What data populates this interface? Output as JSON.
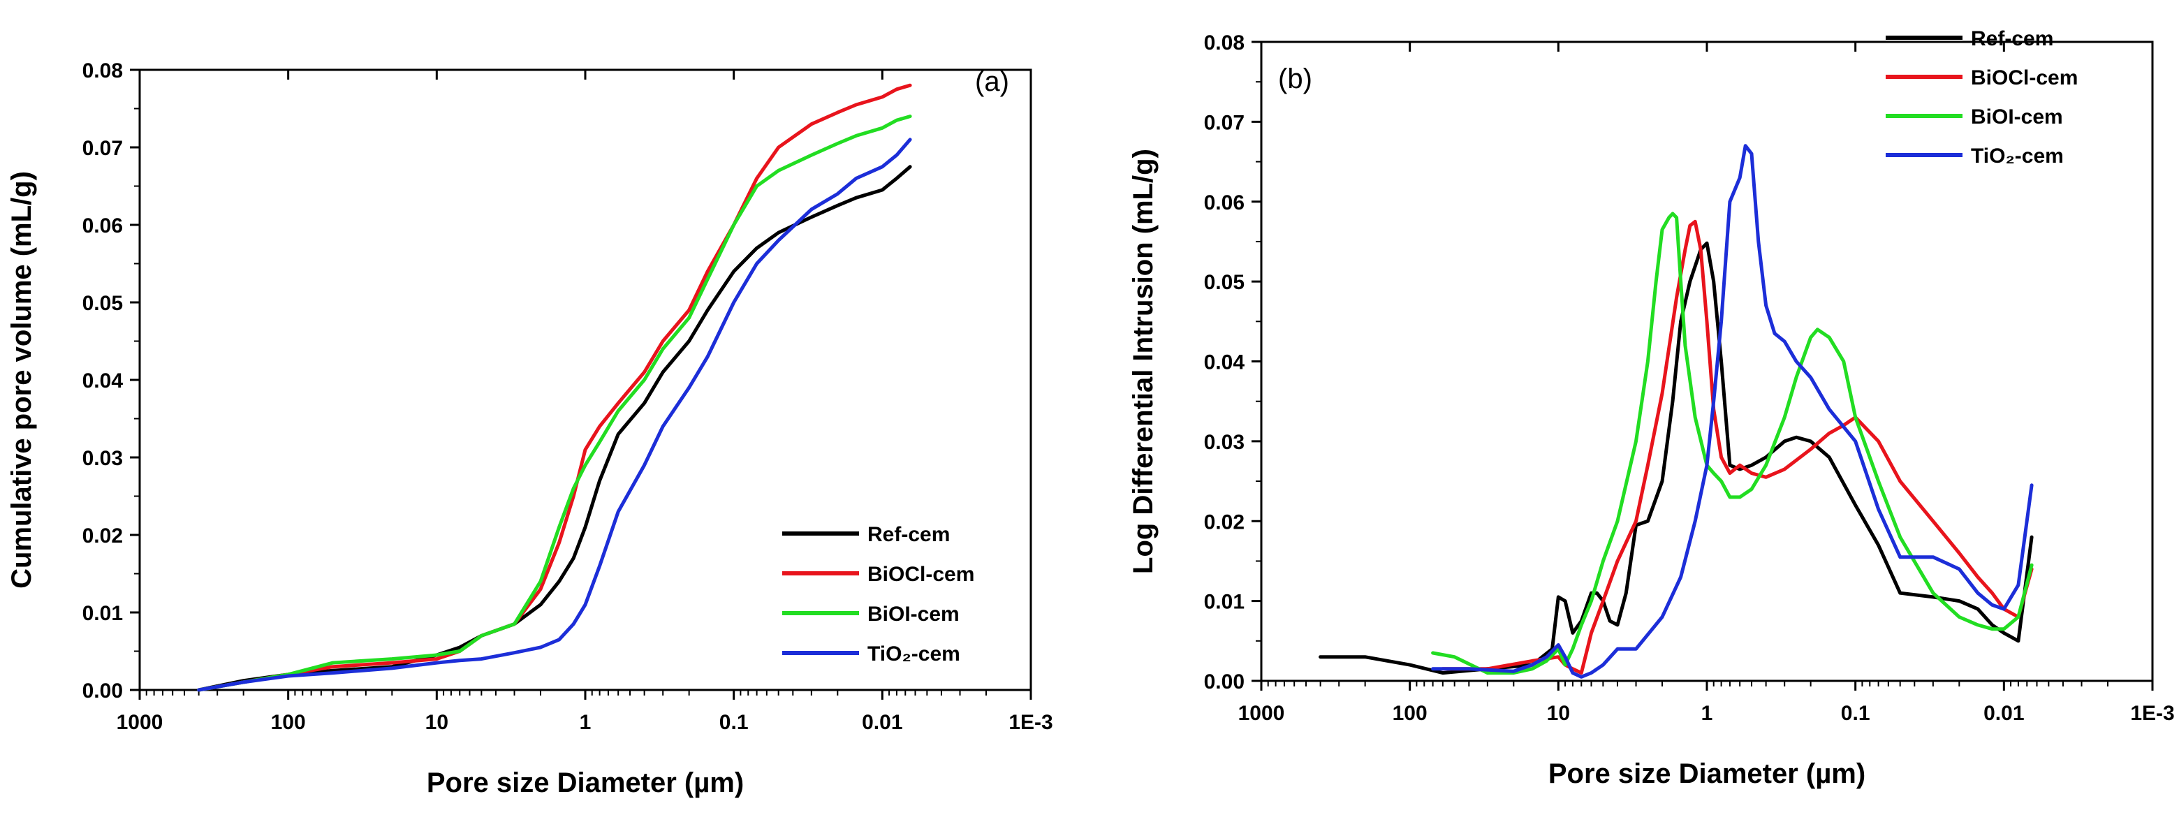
{
  "chart_data": [
    {
      "type": "line",
      "panel_label": "(a)",
      "xlabel": "Pore size Diameter (µm)",
      "ylabel": "Cumulative pore volume (mL/g)",
      "xscale": "log-reversed",
      "xlim": [
        1000,
        0.001
      ],
      "ylim": [
        0,
        0.08
      ],
      "x_tick_values": [
        1000,
        100,
        10,
        1,
        0.1,
        0.01,
        0.001
      ],
      "x_tick_labels": [
        "1000",
        "100",
        "10",
        "1",
        "0.1",
        "0.01",
        "1E-3"
      ],
      "y_tick_values": [
        0,
        0.01,
        0.02,
        0.03,
        0.04,
        0.05,
        0.06,
        0.07,
        0.08
      ],
      "y_tick_labels": [
        "0.00",
        "0.01",
        "0.02",
        "0.03",
        "0.04",
        "0.05",
        "0.06",
        "0.07",
        "0.08"
      ],
      "legend_position": "bottom-right",
      "series": [
        {
          "name": "Ref-cem",
          "color": "#000000",
          "x": [
            400,
            200,
            100,
            50,
            20,
            10,
            7,
            5,
            3,
            2,
            1.5,
            1.2,
            1,
            0.8,
            0.6,
            0.4,
            0.3,
            0.2,
            0.15,
            0.1,
            0.07,
            0.05,
            0.03,
            0.02,
            0.015,
            0.01,
            0.008,
            0.0065
          ],
          "values": [
            0.0,
            0.0012,
            0.002,
            0.0025,
            0.003,
            0.0045,
            0.0055,
            0.007,
            0.0085,
            0.011,
            0.014,
            0.017,
            0.021,
            0.027,
            0.033,
            0.037,
            0.041,
            0.045,
            0.049,
            0.054,
            0.057,
            0.059,
            0.061,
            0.0625,
            0.0635,
            0.0645,
            0.066,
            0.0675
          ]
        },
        {
          "name": "BiOCl-cem",
          "color": "#e8141c",
          "x": [
            400,
            200,
            100,
            50,
            20,
            10,
            7,
            5,
            3,
            2,
            1.5,
            1.2,
            1,
            0.8,
            0.6,
            0.4,
            0.3,
            0.2,
            0.15,
            0.1,
            0.07,
            0.05,
            0.03,
            0.02,
            0.015,
            0.01,
            0.008,
            0.0065
          ],
          "values": [
            0.0,
            0.001,
            0.002,
            0.003,
            0.0035,
            0.004,
            0.005,
            0.007,
            0.0085,
            0.013,
            0.019,
            0.025,
            0.031,
            0.034,
            0.037,
            0.041,
            0.045,
            0.049,
            0.054,
            0.06,
            0.066,
            0.07,
            0.073,
            0.0745,
            0.0755,
            0.0765,
            0.0775,
            0.078
          ]
        },
        {
          "name": "BiOI-cem",
          "color": "#22dd22",
          "x": [
            400,
            200,
            100,
            50,
            20,
            10,
            7,
            5,
            3,
            2,
            1.5,
            1.2,
            1,
            0.8,
            0.6,
            0.4,
            0.3,
            0.2,
            0.15,
            0.1,
            0.07,
            0.05,
            0.03,
            0.02,
            0.015,
            0.01,
            0.008,
            0.0065
          ],
          "values": [
            0.0,
            0.001,
            0.002,
            0.0035,
            0.004,
            0.0045,
            0.005,
            0.007,
            0.0085,
            0.014,
            0.021,
            0.026,
            0.029,
            0.032,
            0.036,
            0.04,
            0.044,
            0.048,
            0.053,
            0.06,
            0.065,
            0.067,
            0.069,
            0.0705,
            0.0715,
            0.0725,
            0.0735,
            0.074
          ]
        },
        {
          "name": "TiO₂-cem",
          "color": "#1c2ed8",
          "x": [
            400,
            200,
            100,
            50,
            20,
            10,
            7,
            5,
            3,
            2,
            1.5,
            1.2,
            1,
            0.8,
            0.6,
            0.4,
            0.3,
            0.2,
            0.15,
            0.1,
            0.07,
            0.05,
            0.03,
            0.02,
            0.015,
            0.01,
            0.008,
            0.0065
          ],
          "values": [
            0.0,
            0.001,
            0.0018,
            0.0022,
            0.0028,
            0.0035,
            0.0038,
            0.004,
            0.0048,
            0.0055,
            0.0065,
            0.0085,
            0.011,
            0.016,
            0.023,
            0.029,
            0.034,
            0.039,
            0.043,
            0.05,
            0.055,
            0.058,
            0.062,
            0.064,
            0.066,
            0.0675,
            0.069,
            0.071
          ]
        }
      ]
    },
    {
      "type": "line",
      "panel_label": "(b)",
      "xlabel": "Pore size Diameter (µm)",
      "ylabel": "Log Differential Intrusion (mL/g)",
      "xscale": "log-reversed",
      "xlim": [
        1000,
        0.001
      ],
      "ylim": [
        0,
        0.08
      ],
      "x_tick_values": [
        1000,
        100,
        10,
        1,
        0.1,
        0.01,
        0.001
      ],
      "x_tick_labels": [
        "1000",
        "100",
        "10",
        "1",
        "0.1",
        "0.01",
        "1E-3"
      ],
      "y_tick_values": [
        0,
        0.01,
        0.02,
        0.03,
        0.04,
        0.05,
        0.06,
        0.07,
        0.08
      ],
      "y_tick_labels": [
        "0.00",
        "0.01",
        "0.02",
        "0.03",
        "0.04",
        "0.05",
        "0.06",
        "0.07",
        "0.08"
      ],
      "legend_position": "top-right",
      "series": [
        {
          "name": "Ref-cem",
          "color": "#000000",
          "x": [
            400,
            200,
            100,
            60,
            30,
            15,
            11,
            10,
            9,
            8,
            7,
            6,
            5.5,
            5,
            4.5,
            4,
            3.5,
            3,
            2.5,
            2,
            1.7,
            1.5,
            1.3,
            1.1,
            1,
            0.9,
            0.8,
            0.7,
            0.6,
            0.5,
            0.4,
            0.3,
            0.25,
            0.2,
            0.15,
            0.1,
            0.07,
            0.05,
            0.03,
            0.02,
            0.015,
            0.012,
            0.01,
            0.008,
            0.0065
          ],
          "values": [
            0.003,
            0.003,
            0.002,
            0.001,
            0.0015,
            0.002,
            0.004,
            0.0105,
            0.01,
            0.006,
            0.0075,
            0.011,
            0.011,
            0.01,
            0.0075,
            0.007,
            0.011,
            0.0195,
            0.02,
            0.025,
            0.035,
            0.045,
            0.05,
            0.054,
            0.0548,
            0.05,
            0.04,
            0.027,
            0.0265,
            0.027,
            0.028,
            0.03,
            0.0305,
            0.03,
            0.028,
            0.022,
            0.017,
            0.011,
            0.0105,
            0.01,
            0.009,
            0.007,
            0.006,
            0.005,
            0.018
          ]
        },
        {
          "name": "BiOCl-cem",
          "color": "#e8141c",
          "x": [
            60,
            30,
            15,
            10,
            9,
            8,
            7,
            6,
            5,
            4,
            3,
            2.5,
            2,
            1.6,
            1.4,
            1.3,
            1.2,
            1.1,
            1,
            0.9,
            0.8,
            0.7,
            0.6,
            0.5,
            0.4,
            0.3,
            0.2,
            0.15,
            0.12,
            0.1,
            0.07,
            0.05,
            0.03,
            0.02,
            0.015,
            0.012,
            0.01,
            0.008,
            0.0065
          ],
          "values": [
            0.0015,
            0.0015,
            0.0025,
            0.003,
            0.002,
            0.0015,
            0.001,
            0.006,
            0.01,
            0.015,
            0.02,
            0.027,
            0.036,
            0.048,
            0.054,
            0.057,
            0.0575,
            0.054,
            0.045,
            0.034,
            0.028,
            0.026,
            0.027,
            0.026,
            0.0255,
            0.0265,
            0.029,
            0.031,
            0.032,
            0.033,
            0.03,
            0.025,
            0.02,
            0.016,
            0.013,
            0.011,
            0.009,
            0.008,
            0.014
          ]
        },
        {
          "name": "BiOI-cem",
          "color": "#22dd22",
          "x": [
            70,
            50,
            30,
            20,
            15,
            12,
            10,
            9,
            8,
            7,
            6,
            5,
            4,
            3,
            2.5,
            2.2,
            2,
            1.8,
            1.7,
            1.6,
            1.5,
            1.4,
            1.2,
            1,
            0.9,
            0.8,
            0.7,
            0.6,
            0.5,
            0.4,
            0.3,
            0.25,
            0.2,
            0.18,
            0.15,
            0.12,
            0.1,
            0.07,
            0.05,
            0.03,
            0.02,
            0.015,
            0.012,
            0.01,
            0.008,
            0.0065
          ],
          "values": [
            0.0035,
            0.003,
            0.001,
            0.001,
            0.0015,
            0.0025,
            0.004,
            0.002,
            0.004,
            0.007,
            0.01,
            0.015,
            0.02,
            0.03,
            0.04,
            0.05,
            0.0565,
            0.058,
            0.0585,
            0.058,
            0.05,
            0.042,
            0.033,
            0.027,
            0.026,
            0.025,
            0.023,
            0.023,
            0.024,
            0.027,
            0.033,
            0.038,
            0.043,
            0.044,
            0.043,
            0.04,
            0.033,
            0.025,
            0.018,
            0.011,
            0.008,
            0.007,
            0.0065,
            0.0065,
            0.008,
            0.0145
          ]
        },
        {
          "name": "TiO₂-cem",
          "color": "#1c2ed8",
          "x": [
            70,
            40,
            20,
            15,
            12,
            10,
            9,
            8,
            7,
            6,
            5,
            4,
            3,
            2,
            1.5,
            1.2,
            1,
            0.9,
            0.8,
            0.7,
            0.6,
            0.55,
            0.5,
            0.45,
            0.4,
            0.35,
            0.3,
            0.25,
            0.2,
            0.15,
            0.1,
            0.07,
            0.05,
            0.03,
            0.02,
            0.015,
            0.012,
            0.01,
            0.008,
            0.0065
          ],
          "values": [
            0.0015,
            0.0015,
            0.0012,
            0.002,
            0.003,
            0.0045,
            0.003,
            0.001,
            0.0005,
            0.001,
            0.002,
            0.004,
            0.004,
            0.008,
            0.013,
            0.02,
            0.027,
            0.035,
            0.045,
            0.06,
            0.063,
            0.067,
            0.066,
            0.055,
            0.047,
            0.0435,
            0.0425,
            0.04,
            0.038,
            0.034,
            0.03,
            0.0215,
            0.0155,
            0.0155,
            0.014,
            0.011,
            0.0095,
            0.009,
            0.012,
            0.0245
          ]
        }
      ]
    }
  ]
}
